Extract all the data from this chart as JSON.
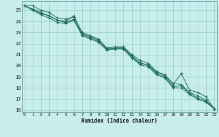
{
  "xlabel": "Humidex (Indice chaleur)",
  "bg_color": "#c8eded",
  "grid_color_major": "#98cccc",
  "grid_color_minor": "#b8e0e0",
  "line_color": "#1a6b5a",
  "x_values": [
    0,
    1,
    2,
    3,
    4,
    5,
    6,
    7,
    8,
    9,
    10,
    11,
    12,
    13,
    14,
    15,
    16,
    17,
    18,
    19,
    20,
    21,
    22,
    23
  ],
  "series": [
    [
      25.4,
      25.4,
      25.0,
      24.8,
      24.3,
      24.2,
      24.4,
      23.0,
      22.7,
      22.4,
      21.5,
      21.6,
      21.6,
      20.8,
      20.2,
      20.1,
      19.4,
      19.2,
      18.4,
      18.3,
      17.6,
      17.3,
      16.9,
      16.1
    ],
    [
      25.4,
      25.1,
      24.8,
      24.5,
      24.1,
      24.0,
      24.5,
      22.9,
      22.6,
      22.3,
      21.6,
      21.7,
      21.7,
      21.0,
      20.5,
      20.2,
      19.5,
      19.1,
      18.3,
      19.3,
      17.8,
      17.6,
      17.2,
      16.1
    ],
    [
      25.4,
      25.1,
      24.7,
      24.5,
      24.1,
      23.9,
      24.2,
      22.8,
      22.5,
      22.2,
      21.5,
      21.6,
      21.6,
      20.9,
      20.3,
      20.0,
      19.3,
      19.0,
      18.1,
      18.2,
      17.5,
      17.1,
      16.8,
      16.1
    ],
    [
      25.4,
      25.0,
      24.6,
      24.3,
      23.9,
      23.8,
      24.1,
      22.7,
      22.4,
      22.1,
      21.4,
      21.5,
      21.5,
      20.7,
      20.1,
      19.9,
      19.2,
      18.9,
      18.0,
      18.0,
      17.4,
      17.0,
      16.7,
      16.1
    ]
  ],
  "ylim": [
    15.8,
    25.8
  ],
  "xlim": [
    -0.3,
    23.3
  ],
  "yticks": [
    16,
    17,
    18,
    19,
    20,
    21,
    22,
    23,
    24,
    25
  ],
  "xticks": [
    0,
    1,
    2,
    3,
    4,
    5,
    6,
    7,
    8,
    9,
    10,
    11,
    12,
    13,
    14,
    15,
    16,
    17,
    18,
    19,
    20,
    21,
    22,
    23
  ]
}
